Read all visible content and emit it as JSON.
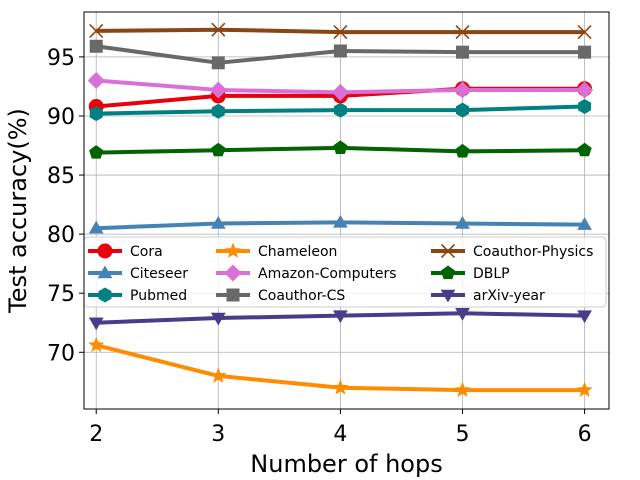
{
  "chart_data": {
    "type": "line",
    "title": "",
    "xlabel": "Number of hops",
    "ylabel": "Test accuracy(%)",
    "x": [
      2,
      3,
      4,
      5,
      6
    ],
    "xlim": [
      1.9,
      6.2
    ],
    "ylim": [
      65.2,
      98.8
    ],
    "xticks": [
      2,
      3,
      4,
      5,
      6
    ],
    "yticks": [
      70,
      75,
      80,
      85,
      90,
      95
    ],
    "grid": true,
    "legend_position": "center-left, 3 columns",
    "series": [
      {
        "name": "Cora",
        "color": "#e8000b",
        "marker": "circle",
        "values": [
          90.8,
          91.7,
          91.7,
          92.3,
          92.3
        ]
      },
      {
        "name": "Citeseer",
        "color": "#4682b4",
        "marker": "triangle-up",
        "values": [
          80.5,
          80.9,
          81.0,
          80.9,
          80.8
        ]
      },
      {
        "name": "Pubmed",
        "color": "#008080",
        "marker": "hexagon",
        "values": [
          90.2,
          90.4,
          90.5,
          90.5,
          90.8
        ]
      },
      {
        "name": "Chameleon",
        "color": "#ff8c00",
        "marker": "star",
        "values": [
          70.6,
          68.0,
          67.0,
          66.8,
          66.8
        ]
      },
      {
        "name": "Amazon-Computers",
        "color": "#da70d6",
        "marker": "diamond",
        "values": [
          93.0,
          92.2,
          92.0,
          92.2,
          92.2
        ]
      },
      {
        "name": "Coauthor-CS",
        "color": "#696969",
        "marker": "square",
        "values": [
          95.9,
          94.5,
          95.5,
          95.4,
          95.4
        ]
      },
      {
        "name": "Coauthor-Physics",
        "color": "#8b4513",
        "marker": "x",
        "values": [
          97.2,
          97.3,
          97.1,
          97.1,
          97.1
        ]
      },
      {
        "name": "DBLP",
        "color": "#006400",
        "marker": "pentagon",
        "values": [
          86.9,
          87.1,
          87.3,
          87.0,
          87.1
        ]
      },
      {
        "name": "arXiv-year",
        "color": "#483d8b",
        "marker": "triangle-down",
        "values": [
          72.5,
          72.9,
          73.1,
          73.3,
          73.1
        ]
      }
    ]
  }
}
